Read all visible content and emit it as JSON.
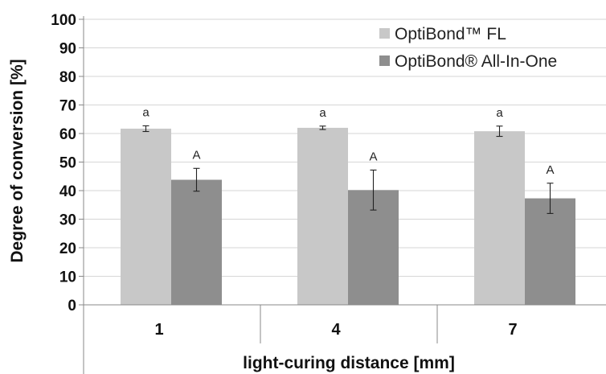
{
  "chart_data": {
    "type": "bar",
    "xlabel": "light-curing distance [mm]",
    "ylabel": "Degree of conversion [%]",
    "categories": [
      "1",
      "4",
      "7"
    ],
    "ylim": [
      0,
      100
    ],
    "yticks": [
      0,
      10,
      20,
      30,
      40,
      50,
      60,
      70,
      80,
      90,
      100
    ],
    "grid": true,
    "legend_position": "top-right",
    "series": [
      {
        "name": "OptiBond™ FL",
        "color": "#c8c8c8",
        "values": [
          61.7,
          62.0,
          60.8
        ],
        "errors": [
          1.0,
          0.6,
          1.8
        ],
        "labels": [
          "a",
          "a",
          "a"
        ]
      },
      {
        "name": "OptiBond® All-In-One",
        "color": "#8e8e8e",
        "values": [
          43.8,
          40.2,
          37.3
        ],
        "errors": [
          4.0,
          7.0,
          5.3
        ],
        "labels": [
          "A",
          "A",
          "A"
        ]
      }
    ]
  }
}
